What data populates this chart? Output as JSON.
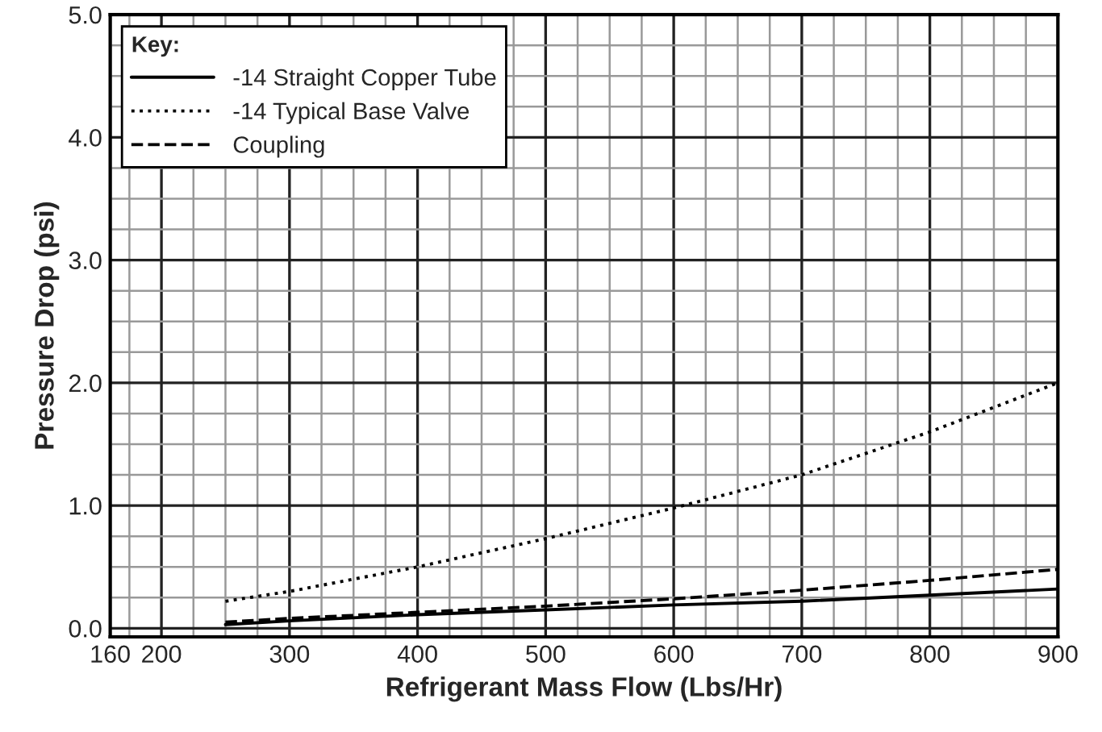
{
  "chart_data": {
    "type": "line",
    "xlabel": "Refrigerant Mass Flow (Lbs/Hr)",
    "ylabel": "Pressure Drop (psi)",
    "legend_title": "Key:",
    "x": [
      250,
      300,
      400,
      500,
      600,
      700,
      800,
      900
    ],
    "series": [
      {
        "name": "-14 Straight Copper Tube",
        "color": "#000000",
        "line_style": "solid",
        "values": [
          0.03,
          0.06,
          0.11,
          0.15,
          0.19,
          0.22,
          0.27,
          0.32
        ]
      },
      {
        "name": "-14 Typical Base Valve",
        "color": "#000000",
        "line_style": "dotted",
        "values": [
          0.22,
          0.3,
          0.5,
          0.73,
          0.98,
          1.25,
          1.6,
          2.0
        ]
      },
      {
        "name": "Coupling",
        "color": "#000000",
        "line_style": "dashed",
        "values": [
          0.05,
          0.08,
          0.13,
          0.18,
          0.24,
          0.31,
          0.39,
          0.48
        ]
      }
    ],
    "xlim": [
      160,
      900
    ],
    "xticks": [
      160,
      {
        "value": 175,
        "label": null
      },
      200,
      {
        "value": 225,
        "label": null
      },
      {
        "value": 250,
        "label": null
      },
      {
        "value": 275,
        "label": null
      },
      300,
      {
        "value": 325,
        "label": null
      },
      {
        "value": 350,
        "label": null
      },
      {
        "value": 375,
        "label": null
      },
      400,
      {
        "value": 425,
        "label": null
      },
      {
        "value": 450,
        "label": null
      },
      {
        "value": 475,
        "label": null
      },
      500,
      {
        "value": 525,
        "label": null
      },
      {
        "value": 550,
        "label": null
      },
      {
        "value": 575,
        "label": null
      },
      600,
      {
        "value": 625,
        "label": null
      },
      {
        "value": 650,
        "label": null
      },
      {
        "value": 675,
        "label": null
      },
      700,
      {
        "value": 725,
        "label": null
      },
      {
        "value": 750,
        "label": null
      },
      {
        "value": 775,
        "label": null
      },
      800,
      {
        "value": 825,
        "label": null
      },
      {
        "value": 850,
        "label": null
      },
      {
        "value": 875,
        "label": null
      },
      900
    ],
    "ylim": [
      -0.07,
      5
    ],
    "yticks": [
      {
        "value": 0,
        "label": "0.0"
      },
      {
        "value": 0.25,
        "label": null
      },
      {
        "value": 0.5,
        "label": null
      },
      {
        "value": 0.75,
        "label": null
      },
      {
        "value": 1,
        "label": "1.0"
      },
      {
        "value": 1.25,
        "label": null
      },
      {
        "value": 1.5,
        "label": null
      },
      {
        "value": 1.75,
        "label": null
      },
      {
        "value": 2,
        "label": "2.0"
      },
      {
        "value": 2.25,
        "label": null
      },
      {
        "value": 2.5,
        "label": null
      },
      {
        "value": 2.75,
        "label": null
      },
      {
        "value": 3,
        "label": "3.0"
      },
      {
        "value": 3.25,
        "label": null
      },
      {
        "value": 3.5,
        "label": null
      },
      {
        "value": 3.75,
        "label": null
      },
      {
        "value": 4,
        "label": "4.0"
      },
      {
        "value": 4.25,
        "label": null
      },
      {
        "value": 4.5,
        "label": null
      },
      {
        "value": 4.75,
        "label": null
      },
      {
        "value": 5,
        "label": "5.0"
      }
    ],
    "grid": true,
    "legend": "top left"
  }
}
